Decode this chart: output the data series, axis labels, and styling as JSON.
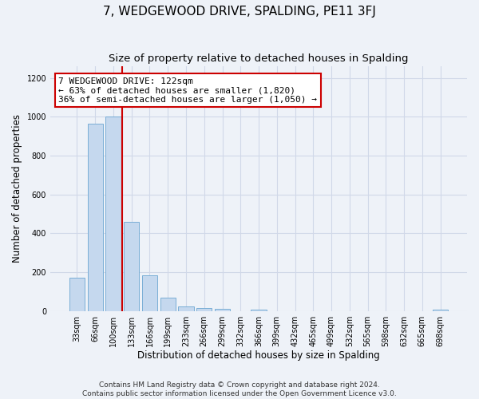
{
  "title": "7, WEDGEWOOD DRIVE, SPALDING, PE11 3FJ",
  "subtitle": "Size of property relative to detached houses in Spalding",
  "xlabel": "Distribution of detached houses by size in Spalding",
  "ylabel": "Number of detached properties",
  "footer_line1": "Contains HM Land Registry data © Crown copyright and database right 2024.",
  "footer_line2": "Contains public sector information licensed under the Open Government Licence v3.0.",
  "bar_labels": [
    "33sqm",
    "66sqm",
    "100sqm",
    "133sqm",
    "166sqm",
    "199sqm",
    "233sqm",
    "266sqm",
    "299sqm",
    "332sqm",
    "366sqm",
    "399sqm",
    "432sqm",
    "465sqm",
    "499sqm",
    "532sqm",
    "565sqm",
    "598sqm",
    "632sqm",
    "665sqm",
    "698sqm"
  ],
  "bar_values": [
    170,
    965,
    1000,
    460,
    185,
    70,
    25,
    15,
    10,
    0,
    5,
    0,
    0,
    0,
    0,
    0,
    0,
    0,
    0,
    0,
    5
  ],
  "bar_color": "#c5d8ee",
  "bar_edgecolor": "#7aaed6",
  "vline_x": 2.5,
  "vline_color": "#cc0000",
  "annotation_line1": "7 WEDGEWOOD DRIVE: 122sqm",
  "annotation_line2": "← 63% of detached houses are smaller (1,820)",
  "annotation_line3": "36% of semi-detached houses are larger (1,050) →",
  "annotation_box_edgecolor": "#cc0000",
  "annotation_box_facecolor": "#ffffff",
  "ylim": [
    0,
    1260
  ],
  "yticks": [
    0,
    200,
    400,
    600,
    800,
    1000,
    1200
  ],
  "grid_color": "#d0d8e8",
  "background_color": "#eef2f8",
  "title_fontsize": 11,
  "subtitle_fontsize": 9.5,
  "axis_label_fontsize": 8.5,
  "tick_fontsize": 7,
  "annotation_fontsize": 8,
  "footer_fontsize": 6.5
}
